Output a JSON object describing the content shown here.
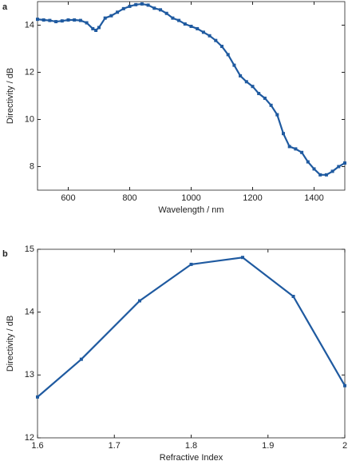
{
  "chart_data": [
    {
      "type": "line",
      "panel": "a",
      "xlabel": "Wavelength / nm",
      "ylabel": "Directivity / dB",
      "x": [
        500,
        520,
        540,
        560,
        580,
        600,
        620,
        640,
        660,
        680,
        690,
        700,
        720,
        740,
        760,
        780,
        800,
        820,
        840,
        860,
        880,
        900,
        920,
        940,
        960,
        980,
        1000,
        1020,
        1040,
        1060,
        1080,
        1100,
        1120,
        1140,
        1160,
        1180,
        1200,
        1220,
        1240,
        1260,
        1280,
        1300,
        1320,
        1340,
        1360,
        1380,
        1400,
        1420,
        1440,
        1460,
        1480,
        1500
      ],
      "series": [
        {
          "color": "#1f5aa0",
          "values": [
            14.25,
            14.22,
            14.2,
            14.15,
            14.18,
            14.22,
            14.22,
            14.2,
            14.1,
            13.85,
            13.78,
            13.9,
            14.3,
            14.4,
            14.55,
            14.7,
            14.8,
            14.87,
            14.9,
            14.85,
            14.72,
            14.65,
            14.5,
            14.3,
            14.2,
            14.05,
            13.95,
            13.85,
            13.7,
            13.55,
            13.35,
            13.1,
            12.75,
            12.3,
            11.85,
            11.6,
            11.4,
            11.1,
            10.9,
            10.6,
            10.2,
            9.4,
            8.85,
            8.75,
            8.6,
            8.2,
            7.9,
            7.65,
            7.65,
            7.8,
            8.0,
            8.15
          ]
        }
      ],
      "xlim": [
        500,
        1500
      ],
      "xticks": [
        600,
        800,
        1000,
        1200,
        1400
      ],
      "ylim": [
        7,
        15
      ],
      "yticks": [
        8,
        10,
        12,
        14
      ]
    },
    {
      "type": "line",
      "panel": "b",
      "xlabel": "Refractive Index",
      "ylabel": "Directivity / dB",
      "x": [
        1.6,
        1.657,
        1.733,
        1.8,
        1.867,
        1.933,
        2.0
      ],
      "series": [
        {
          "color": "#1f5aa0",
          "values": [
            12.65,
            13.25,
            14.18,
            14.76,
            14.87,
            14.25,
            12.83
          ]
        }
      ],
      "xlim": [
        1.6,
        2.0
      ],
      "xticks": [
        1.6,
        1.7,
        1.8,
        1.9,
        2
      ],
      "ylim": [
        12,
        15
      ],
      "yticks": [
        12,
        13,
        14,
        15
      ]
    }
  ]
}
